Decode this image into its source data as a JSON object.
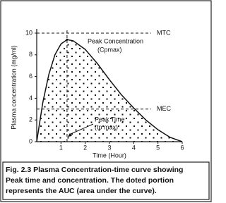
{
  "chart_data": {
    "type": "line",
    "x_label": "Time (Hour)",
    "y_label": "Plasma concentration (mg/ml)",
    "x": [
      0,
      0.25,
      0.5,
      0.75,
      1,
      1.25,
      1.5,
      2,
      2.5,
      3,
      3.5,
      4,
      4.5,
      5,
      5.5,
      6
    ],
    "values": [
      0,
      3.6,
      6.2,
      8.0,
      9.0,
      9.4,
      9.3,
      8.5,
      7.2,
      5.7,
      4.3,
      3.1,
      2.0,
      1.1,
      0.4,
      0
    ],
    "color": "#111111",
    "area_fill": "dots",
    "xlim": [
      0,
      6
    ],
    "ylim": [
      0,
      10
    ],
    "xticks": [
      1,
      2,
      3,
      4,
      5,
      6
    ],
    "yticks": [
      0,
      2,
      4,
      6,
      8,
      10
    ],
    "reference_lines": [
      {
        "label": "MTC",
        "value": 10
      },
      {
        "label": "MEC",
        "value": 3
      }
    ],
    "peak": {
      "x": 1.25,
      "y": 9.4,
      "concentration_label": "Peak Concentration",
      "concentration_symbol": "(Cpmax)",
      "time_label": "Peak Time",
      "time_symbol": "(tp max)"
    },
    "caption": [
      "Fig. 2.3 Plasma Concentration-time curve showing",
      "Peak time and concentration. The doted portion",
      "represents the AUC (area under the curve)."
    ]
  }
}
